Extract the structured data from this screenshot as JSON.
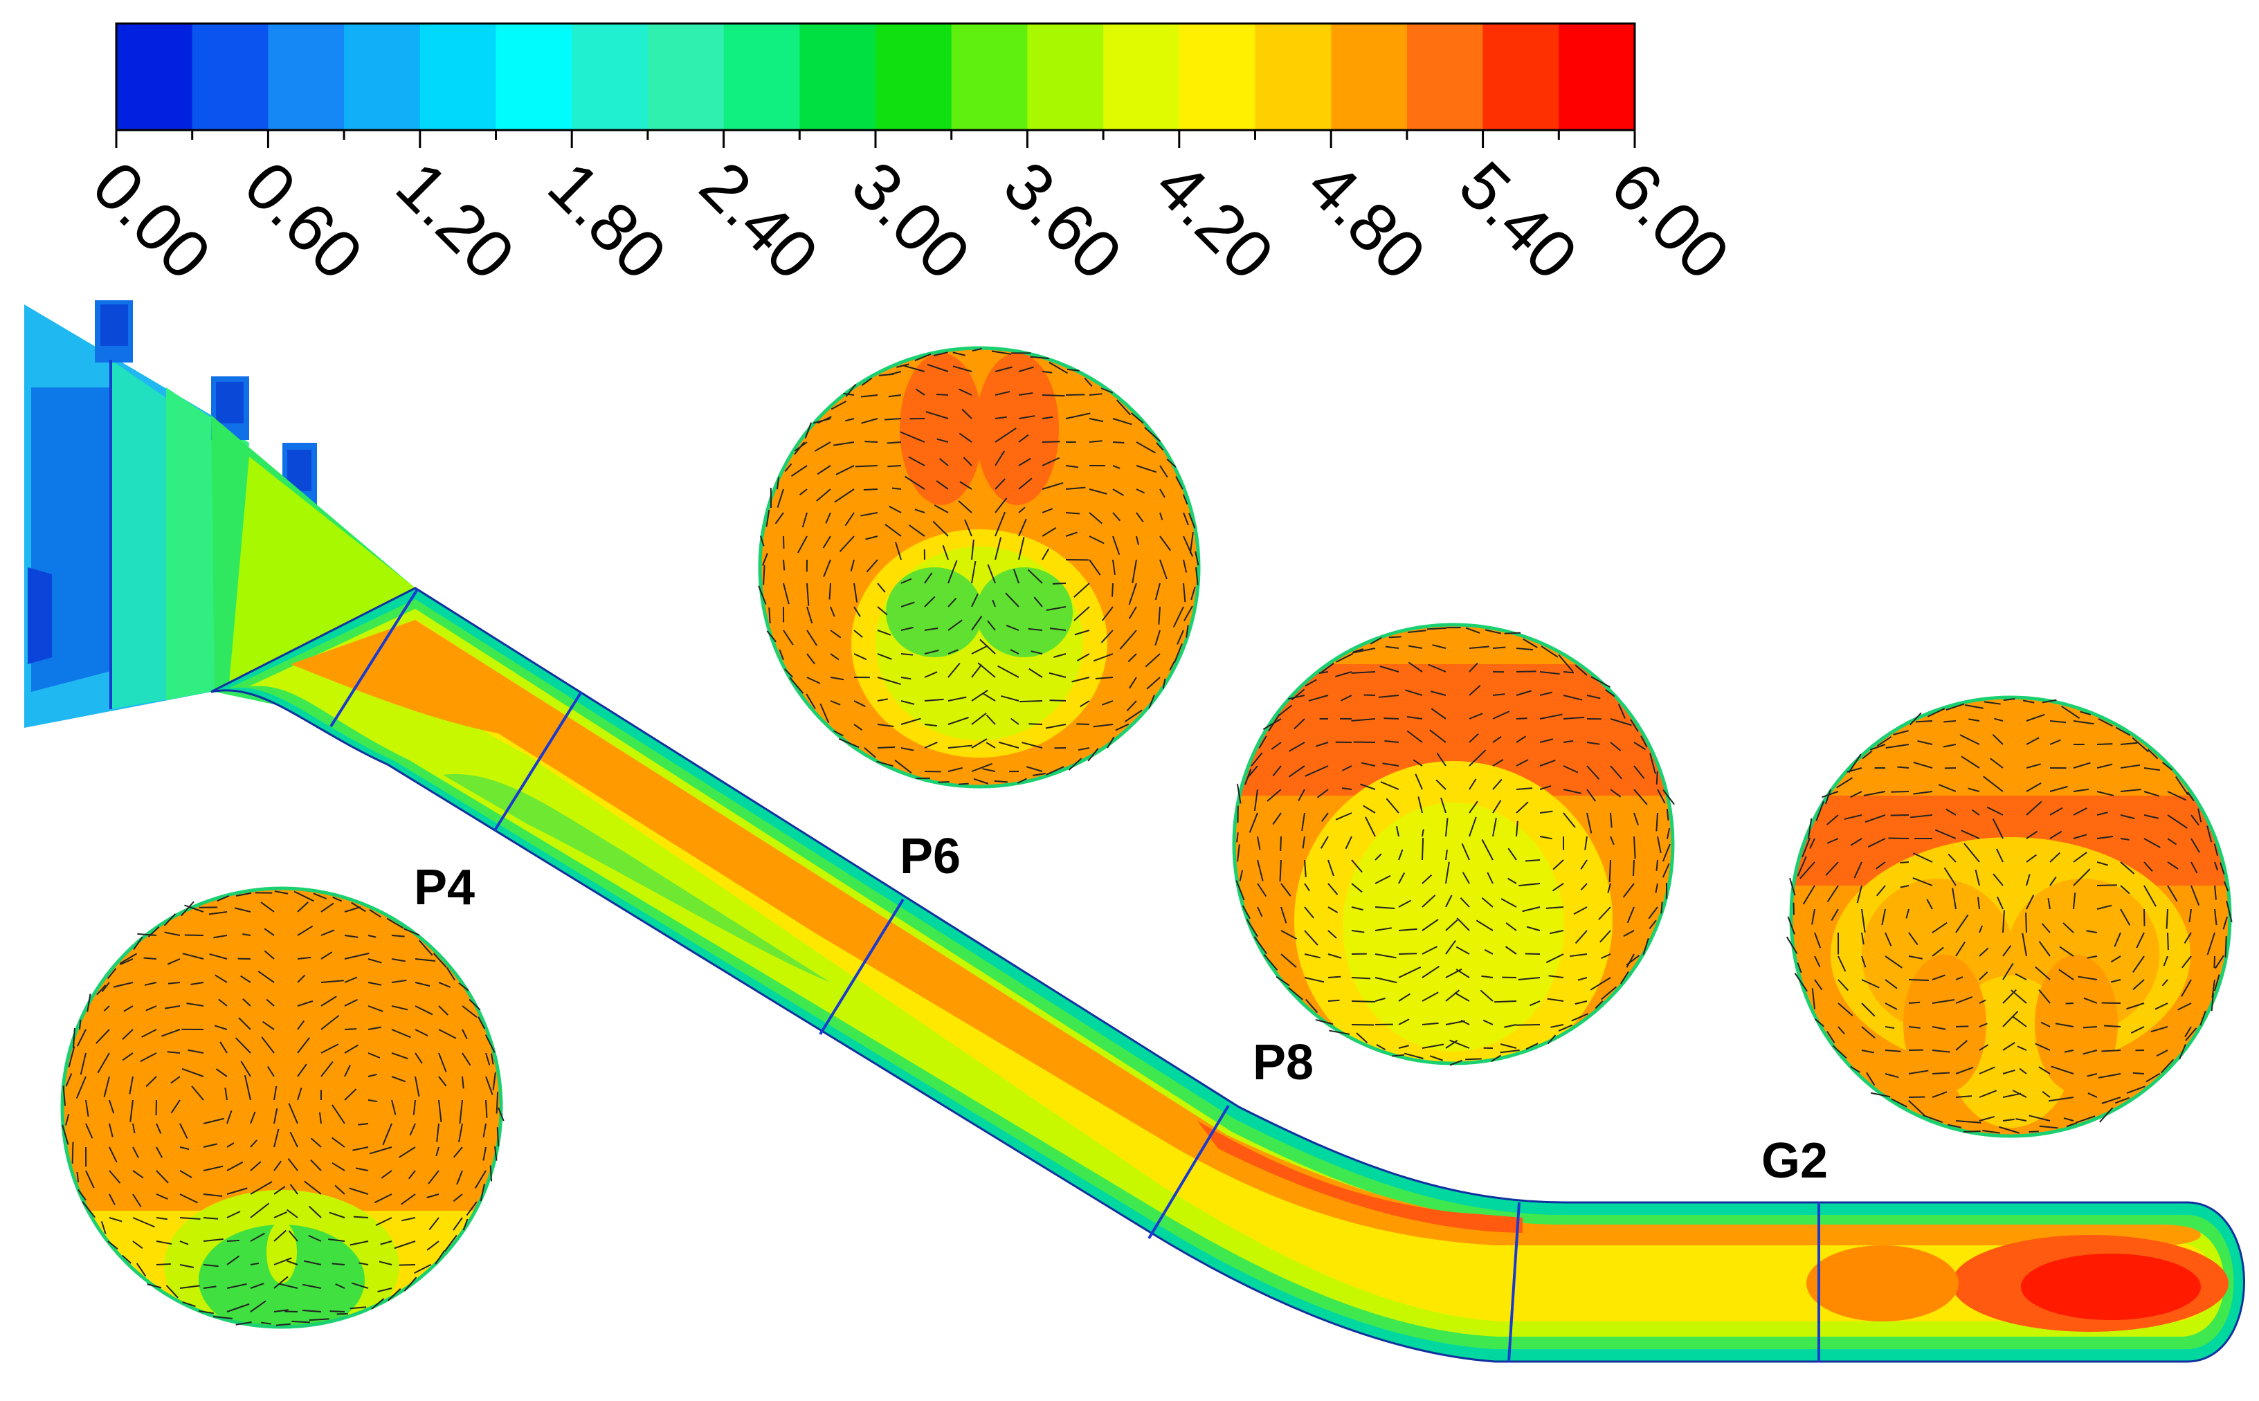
{
  "colorbar": {
    "tick_labels": [
      "0.00",
      "0.60",
      "1.20",
      "1.80",
      "2.40",
      "3.00",
      "3.60",
      "4.20",
      "4.80",
      "5.40",
      "6.00"
    ],
    "colors": [
      "#0022e0",
      "#0a55f0",
      "#1588f5",
      "#10b0f8",
      "#00d8fc",
      "#00fcfc",
      "#20f0d0",
      "#30f0b0",
      "#10f080",
      "#00e040",
      "#10e010",
      "#60f010",
      "#a8f800",
      "#e0fa00",
      "#fff000",
      "#ffd000",
      "#ffa000",
      "#ff7010",
      "#ff3000",
      "#ff0000"
    ]
  },
  "section_labels": {
    "p4": "P4",
    "p6": "P6",
    "p8": "P8",
    "g2": "G2"
  }
}
